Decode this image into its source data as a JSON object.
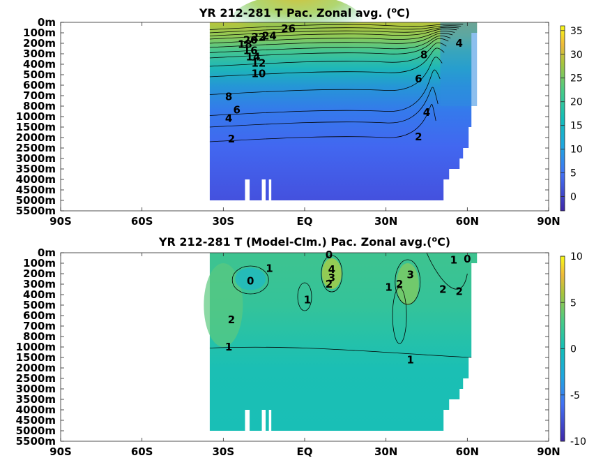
{
  "chart_data": [
    {
      "type": "heatmap",
      "title": "YR 212-281 T Pac. Zonal avg. (",
      "title_sup": "o",
      "title_end": "C)",
      "x_ticks": [
        "90S",
        "60S",
        "30S",
        "EQ",
        "30N",
        "60N",
        "90N"
      ],
      "x_values": [
        -90,
        -60,
        -30,
        0,
        30,
        60,
        90
      ],
      "y_ticks": [
        "0m",
        "100m",
        "200m",
        "300m",
        "400m",
        "500m",
        "600m",
        "700m",
        "800m",
        "1000m",
        "1500m",
        "2000m",
        "2500m",
        "3000m",
        "3500m",
        "4000m",
        "4500m",
        "5000m",
        "5500m"
      ],
      "y_depths": [
        0,
        100,
        200,
        300,
        400,
        500,
        600,
        700,
        800,
        1000,
        1500,
        2000,
        2500,
        3000,
        3500,
        4000,
        4500,
        5000,
        5500
      ],
      "lat_range": [
        -35,
        61
      ],
      "colorbar": {
        "min": -3,
        "max": 36,
        "ticks": [
          "35",
          "30",
          "25",
          "20",
          "15",
          "10",
          "5",
          "0"
        ],
        "tick_values": [
          35,
          30,
          25,
          20,
          15,
          10,
          5,
          0
        ]
      },
      "contour_levels": [
        2,
        4,
        6,
        8,
        10,
        12,
        14,
        16,
        18,
        20,
        22,
        24,
        26
      ],
      "contour_labels": [
        {
          "text": "26",
          "lat": -6,
          "depth": 60
        },
        {
          "text": "24",
          "lat": -13,
          "depth": 130
        },
        {
          "text": "22",
          "lat": -17,
          "depth": 140
        },
        {
          "text": "20",
          "lat": -20,
          "depth": 170
        },
        {
          "text": "18",
          "lat": -22,
          "depth": 210
        },
        {
          "text": "16",
          "lat": -20,
          "depth": 270
        },
        {
          "text": "14",
          "lat": -19,
          "depth": 330
        },
        {
          "text": "12",
          "lat": -17,
          "depth": 390
        },
        {
          "text": "10",
          "lat": -17,
          "depth": 490
        },
        {
          "text": "8",
          "lat": -28,
          "depth": 710
        },
        {
          "text": "6",
          "lat": -25,
          "depth": 870
        },
        {
          "text": "4",
          "lat": -28,
          "depth": 1080
        },
        {
          "text": "4",
          "lat": 45,
          "depth": 920
        },
        {
          "text": "2",
          "lat": -27,
          "depth": 2070
        },
        {
          "text": "2",
          "lat": 42,
          "depth": 1960
        },
        {
          "text": "8",
          "lat": 44,
          "depth": 310
        },
        {
          "text": "6",
          "lat": 42,
          "depth": 540
        },
        {
          "text": "4",
          "lat": 57,
          "depth": 200
        }
      ]
    },
    {
      "type": "heatmap",
      "title": "YR 212-281 T (Model-Clm.) Pac. Zonal avg.(",
      "title_sup": "o",
      "title_end": "C)",
      "x_ticks": [
        "90S",
        "60S",
        "30S",
        "EQ",
        "30N",
        "60N",
        "90N"
      ],
      "x_values": [
        -90,
        -60,
        -30,
        0,
        30,
        60,
        90
      ],
      "y_ticks": [
        "0m",
        "100m",
        "200m",
        "300m",
        "400m",
        "500m",
        "600m",
        "700m",
        "800m",
        "1000m",
        "1500m",
        "2000m",
        "2500m",
        "3000m",
        "3500m",
        "4000m",
        "4500m",
        "5000m",
        "5500m"
      ],
      "y_depths": [
        0,
        100,
        200,
        300,
        400,
        500,
        600,
        700,
        800,
        1000,
        1500,
        2000,
        2500,
        3000,
        3500,
        4000,
        4500,
        5000,
        5500
      ],
      "lat_range": [
        -35,
        61
      ],
      "colorbar": {
        "min": -10,
        "max": 10,
        "ticks": [
          "10",
          "5",
          "0",
          "-5",
          "-10"
        ],
        "tick_values": [
          10,
          5,
          0,
          -5,
          -10
        ]
      },
      "contour_labels": [
        {
          "text": "0",
          "lat": 9,
          "depth": 20
        },
        {
          "text": "4",
          "lat": 10,
          "depth": 160
        },
        {
          "text": "3",
          "lat": 10,
          "depth": 240
        },
        {
          "text": "2",
          "lat": 9,
          "depth": 300
        },
        {
          "text": "1",
          "lat": -13,
          "depth": 150
        },
        {
          "text": "0",
          "lat": -20,
          "depth": 270
        },
        {
          "text": "1",
          "lat": 1,
          "depth": 450
        },
        {
          "text": "2",
          "lat": -27,
          "depth": 640
        },
        {
          "text": "1",
          "lat": -28,
          "depth": 1000
        },
        {
          "text": "1",
          "lat": 39,
          "depth": 1620
        },
        {
          "text": "1",
          "lat": 31,
          "depth": 330
        },
        {
          "text": "2",
          "lat": 35,
          "depth": 300
        },
        {
          "text": "3",
          "lat": 39,
          "depth": 210
        },
        {
          "text": "2",
          "lat": 51,
          "depth": 350
        },
        {
          "text": "2",
          "lat": 57,
          "depth": 370
        },
        {
          "text": "1",
          "lat": 55,
          "depth": 70
        },
        {
          "text": "0",
          "lat": 60,
          "depth": 60
        }
      ]
    }
  ]
}
